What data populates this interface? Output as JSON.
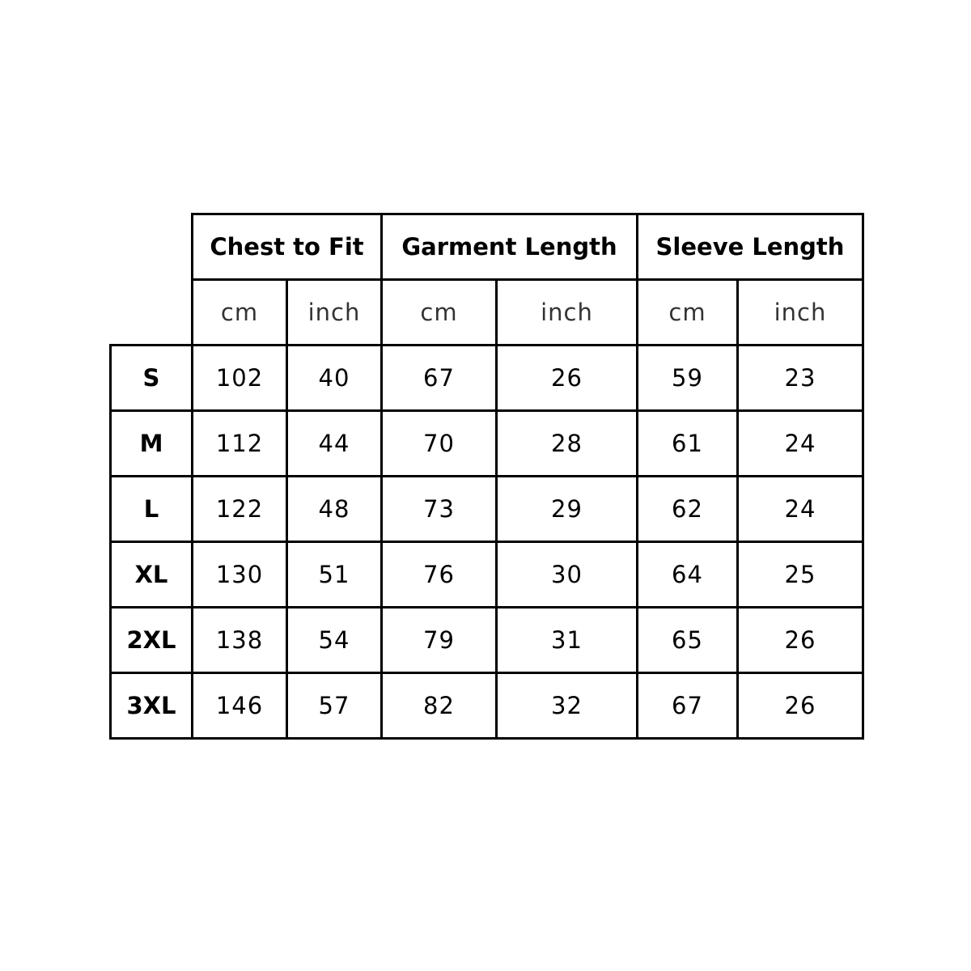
{
  "groups": [
    "Chest to Fit",
    "Garment Length",
    "Sleeve Length"
  ],
  "units": [
    "cm",
    "inch",
    "cm",
    "inch",
    "cm",
    "inch"
  ],
  "rows": [
    {
      "size": "S",
      "values": [
        "102",
        "40",
        "67",
        "26",
        "59",
        "23"
      ]
    },
    {
      "size": "M",
      "values": [
        "112",
        "44",
        "70",
        "28",
        "61",
        "24"
      ]
    },
    {
      "size": "L",
      "values": [
        "122",
        "48",
        "73",
        "29",
        "62",
        "24"
      ]
    },
    {
      "size": "XL",
      "values": [
        "130",
        "51",
        "76",
        "30",
        "64",
        "25"
      ]
    },
    {
      "size": "2XL",
      "values": [
        "138",
        "54",
        "79",
        "31",
        "65",
        "26"
      ]
    },
    {
      "size": "3XL",
      "values": [
        "146",
        "57",
        "82",
        "32",
        "67",
        "26"
      ]
    }
  ]
}
